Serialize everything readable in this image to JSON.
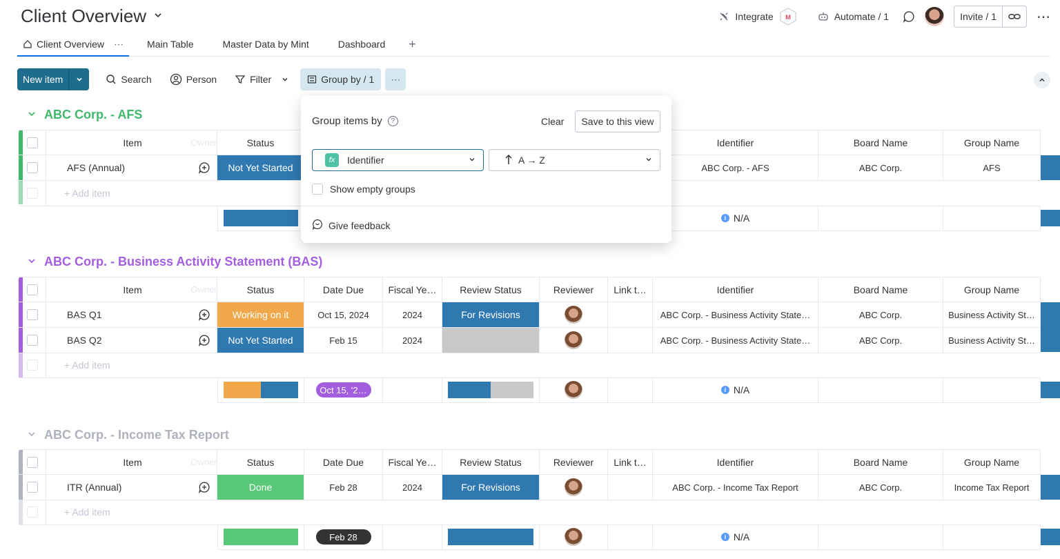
{
  "header": {
    "title": "Client Overview",
    "integrate": "Integrate",
    "automate": "Automate / 1",
    "invite": "Invite / 1"
  },
  "tabs": [
    {
      "label": "Client Overview"
    },
    {
      "label": "Main Table"
    },
    {
      "label": "Master Data by Mint"
    },
    {
      "label": "Dashboard"
    }
  ],
  "toolbar": {
    "new_item": "New item",
    "search": "Search",
    "person": "Person",
    "filter": "Filter",
    "group_by": "Group by / 1"
  },
  "columns": {
    "item": "Item",
    "owner": "Owner",
    "status": "Status",
    "date_due": "Date Due",
    "fiscal_year": "Fiscal Ye…",
    "review_status": "Review Status",
    "reviewer": "Reviewer",
    "link": "Link t…",
    "identifier": "Identifier",
    "board_name": "Board Name",
    "group_name": "Group Name"
  },
  "add_item": "+ Add item",
  "na": "N/A",
  "colors": {
    "not_yet_started": "#2f78b0",
    "working_on_it": "#f0a84a",
    "done": "#59c878",
    "for_revisions": "#2f78b0",
    "empty": "#c8c8c8",
    "afs_group": "#3fb86b",
    "bas_group": "#a35ee0",
    "itr_group": "#aeb2bd"
  },
  "groups": [
    {
      "title": "ABC Corp. - AFS",
      "rows": [
        {
          "item": "AFS (Annual)",
          "status": "Not Yet Started",
          "identifier": "ABC Corp. - AFS",
          "board": "ABC Corp.",
          "group": "AFS"
        }
      ]
    },
    {
      "title": "ABC Corp. - Business Activity Statement (BAS)",
      "rows": [
        {
          "item": "BAS Q1",
          "status": "Working on it",
          "date": "Oct 15, 2024",
          "fy": "2024",
          "review": "For Revisions",
          "identifier": "ABC Corp. - Business Activity State…",
          "board": "ABC Corp.",
          "group": "Business Activity St…"
        },
        {
          "item": "BAS Q2",
          "status": "Not Yet Started",
          "date": "Feb 15",
          "fy": "2024",
          "review": "",
          "identifier": "ABC Corp. - Business Activity State…",
          "board": "ABC Corp.",
          "group": "Business Activity St…"
        }
      ],
      "summary_date": "Oct 15, '2…"
    },
    {
      "title": "ABC Corp. - Income Tax Report",
      "rows": [
        {
          "item": "ITR (Annual)",
          "status": "Done",
          "date": "Feb 28",
          "fy": "2024",
          "review": "For Revisions",
          "identifier": "ABC Corp. - Income Tax Report",
          "board": "ABC Corp.",
          "group": "Income Tax Report"
        }
      ],
      "summary_date": "Feb 28"
    }
  ],
  "popover": {
    "title": "Group items by",
    "clear": "Clear",
    "save": "Save to this view",
    "column": "Identifier",
    "sort": "A → Z",
    "show_empty": "Show empty groups",
    "feedback": "Give feedback"
  }
}
